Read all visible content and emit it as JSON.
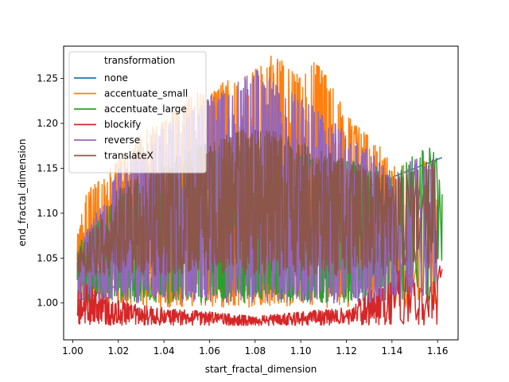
{
  "chart_data": {
    "type": "line",
    "xlabel": "start_fractal_dimension",
    "ylabel": "end_fractal_dimension",
    "xlim": [
      0.996,
      1.169
    ],
    "ylim": [
      0.959,
      1.286
    ],
    "x_ticks": [
      "1.00",
      "1.02",
      "1.04",
      "1.06",
      "1.08",
      "1.10",
      "1.12",
      "1.14",
      "1.16"
    ],
    "y_ticks": [
      "1.00",
      "1.05",
      "1.10",
      "1.15",
      "1.20",
      "1.25"
    ],
    "grid": false,
    "legend": {
      "title": "transformation",
      "placement": "top-left"
    },
    "series": [
      {
        "name": "none",
        "color": "#1f77b4",
        "x": [
          1.002,
          1.02,
          1.04,
          1.06,
          1.08,
          1.1,
          1.12,
          1.14,
          1.162
        ],
        "y": [
          1.002,
          1.02,
          1.04,
          1.06,
          1.08,
          1.1,
          1.12,
          1.14,
          1.162
        ]
      },
      {
        "name": "accentuate_small",
        "color": "#ff7f0e",
        "x": [
          1.002,
          1.006,
          1.012,
          1.02,
          1.03,
          1.04,
          1.05,
          1.06,
          1.07,
          1.08,
          1.087,
          1.095,
          1.1,
          1.106,
          1.111,
          1.12,
          1.13,
          1.14,
          1.15,
          1.16
        ],
        "y": [
          1.075,
          1.13,
          1.14,
          1.16,
          1.19,
          1.21,
          1.23,
          1.24,
          1.25,
          1.26,
          1.275,
          1.27,
          1.25,
          1.27,
          1.255,
          1.21,
          1.19,
          1.16,
          1.15,
          1.17
        ],
        "y_range": [
          0.995,
          1.275
        ]
      },
      {
        "name": "accentuate_large",
        "color": "#2ca02c",
        "x": [
          1.002,
          1.02,
          1.04,
          1.06,
          1.08,
          1.1,
          1.12,
          1.14,
          1.15,
          1.157,
          1.162
        ],
        "y": [
          1.065,
          1.12,
          1.15,
          1.17,
          1.18,
          1.17,
          1.16,
          1.15,
          1.17,
          1.18,
          1.145
        ],
        "y_range": [
          1.0,
          1.18
        ]
      },
      {
        "name": "blockify",
        "color": "#d62728",
        "x": [
          1.002,
          1.02,
          1.04,
          1.06,
          1.08,
          1.1,
          1.12,
          1.14,
          1.15,
          1.155,
          1.162
        ],
        "y": [
          1.03,
          1.005,
          0.995,
          0.99,
          0.985,
          0.99,
          0.995,
          1.03,
          1.06,
          1.01,
          1.05
        ],
        "y_range": [
          0.975,
          1.19
        ]
      },
      {
        "name": "reverse",
        "color": "#9467bd",
        "x": [
          1.002,
          1.02,
          1.04,
          1.06,
          1.08,
          1.1,
          1.12,
          1.14,
          1.16
        ],
        "y": [
          1.06,
          1.15,
          1.2,
          1.23,
          1.26,
          1.23,
          1.19,
          1.15,
          1.17
        ],
        "y_range": [
          1.0,
          1.26
        ]
      },
      {
        "name": "translateX",
        "color": "#8c564b",
        "x": [
          1.002,
          1.02,
          1.04,
          1.06,
          1.08,
          1.1,
          1.12,
          1.14,
          1.16
        ],
        "y": [
          1.06,
          1.13,
          1.16,
          1.18,
          1.2,
          1.18,
          1.16,
          1.14,
          1.165
        ],
        "y_range": [
          1.03,
          1.22
        ]
      }
    ]
  }
}
